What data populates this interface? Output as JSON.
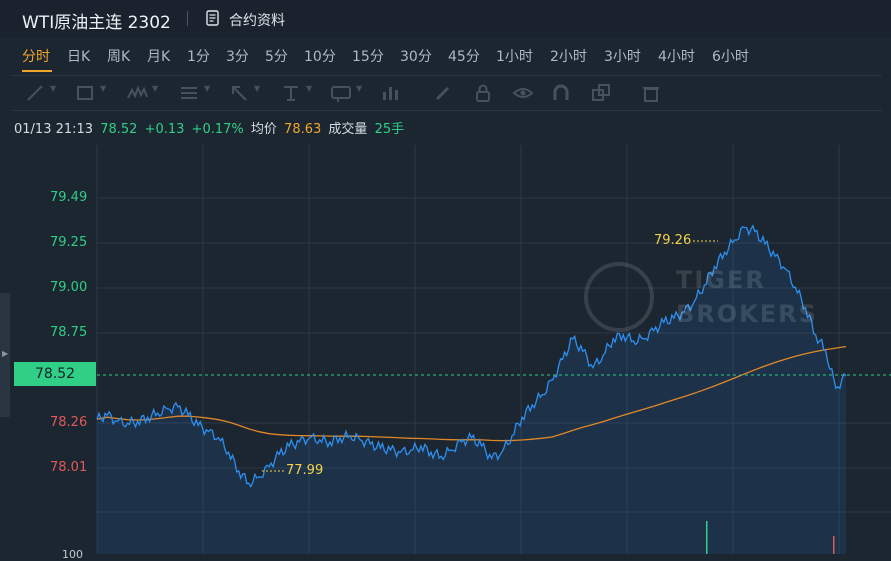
{
  "header": {
    "title": "WTI原油主连 2302",
    "doc_link": "合约资料"
  },
  "tabs": [
    "分时",
    "日K",
    "周K",
    "月K",
    "1分",
    "3分",
    "5分",
    "10分",
    "15分",
    "30分",
    "45分",
    "1小时",
    "2小时",
    "3小时",
    "4小时",
    "6小时"
  ],
  "active_tab": "分时",
  "toolbar": {
    "icons": [
      "line-tool-icon",
      "rectangle-tool-icon",
      "wave-tool-icon",
      "fibonacci-tool-icon",
      "arrow-tool-icon",
      "text-tool-icon",
      "label-tool-icon",
      "bars-tool-icon",
      "pen-icon",
      "lock-icon",
      "eye-icon",
      "magnet-icon",
      "duplicate-icon",
      "trash-icon"
    ]
  },
  "quote": {
    "time": "01/13 21:13",
    "price": "78.52",
    "change": "+0.13",
    "change_pct": "+0.17%",
    "avg_label": "均价",
    "avg_value": "78.63",
    "volume_label": "成交量",
    "volume_value": "25手"
  },
  "y_axis": {
    "labels_green": [
      "79.49",
      "79.25",
      "79.00",
      "78.75"
    ],
    "labels_red": [
      "78.26",
      "78.01"
    ],
    "current": "78.52"
  },
  "annotations": {
    "high": "79.26",
    "low": "77.99"
  },
  "watermark": {
    "line1": "TIGER",
    "line2": "BROKERS"
  },
  "volume_axis_label": "100",
  "colors": {
    "background": "#1c2631",
    "price_line": "#2d8ff0",
    "avg_line": "#e0872a",
    "up": "#2fcf86",
    "down": "#e05a5a",
    "accent": "#f0a52c"
  },
  "chart_data": {
    "type": "line",
    "series": [
      {
        "name": "",
        "values": [
          78.31,
          78.33,
          78.3,
          78.29,
          78.3,
          78.32,
          78.34,
          78.36,
          78.37,
          78.33,
          78.28,
          78.25,
          78.22,
          78.15,
          78.06,
          78.0,
          78.03,
          78.08,
          78.14,
          78.18,
          78.2,
          78.22,
          78.21,
          78.2,
          78.22,
          78.23,
          78.21,
          78.19,
          78.17,
          78.16,
          78.15,
          78.16,
          78.18,
          78.15,
          78.13,
          78.16,
          78.2,
          78.22,
          78.18,
          78.12,
          78.15,
          78.23,
          78.32,
          78.38,
          78.43,
          78.5,
          78.6,
          78.7,
          78.64,
          78.56,
          78.62,
          78.7,
          78.72,
          78.69,
          78.7,
          78.74,
          78.78,
          78.8,
          78.83,
          78.88,
          78.96,
          79.05,
          79.12,
          79.18,
          79.24,
          79.22,
          79.16,
          79.1,
          79.04,
          78.95,
          78.85,
          78.72,
          78.64,
          78.46,
          78.52
        ]
      }
    ],
    "ylim": [
      77.86,
      79.64
    ]
  }
}
